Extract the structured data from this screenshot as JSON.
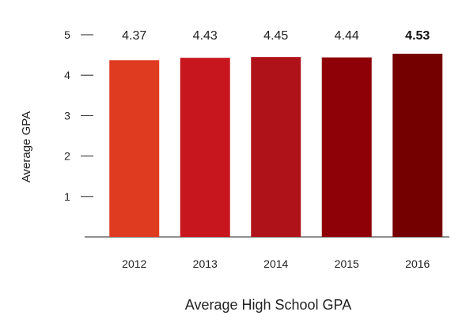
{
  "chart_data": {
    "type": "bar",
    "title": "",
    "xlabel": "Average High School GPA",
    "ylabel": "Average GPA",
    "categories": [
      "2012",
      "2013",
      "2014",
      "2015",
      "2016"
    ],
    "values": [
      4.37,
      4.43,
      4.45,
      4.44,
      4.53
    ],
    "data_labels": [
      "4.37",
      "4.43",
      "4.45",
      "4.44",
      "4.53"
    ],
    "emphasized_label_index": 4,
    "bar_colors": [
      "#df3b20",
      "#c8161e",
      "#b0121a",
      "#8e0207",
      "#750000"
    ],
    "ylim": [
      0,
      5
    ],
    "yticks": [
      1,
      2,
      3,
      4,
      5
    ],
    "grid": false,
    "legend": "none"
  }
}
